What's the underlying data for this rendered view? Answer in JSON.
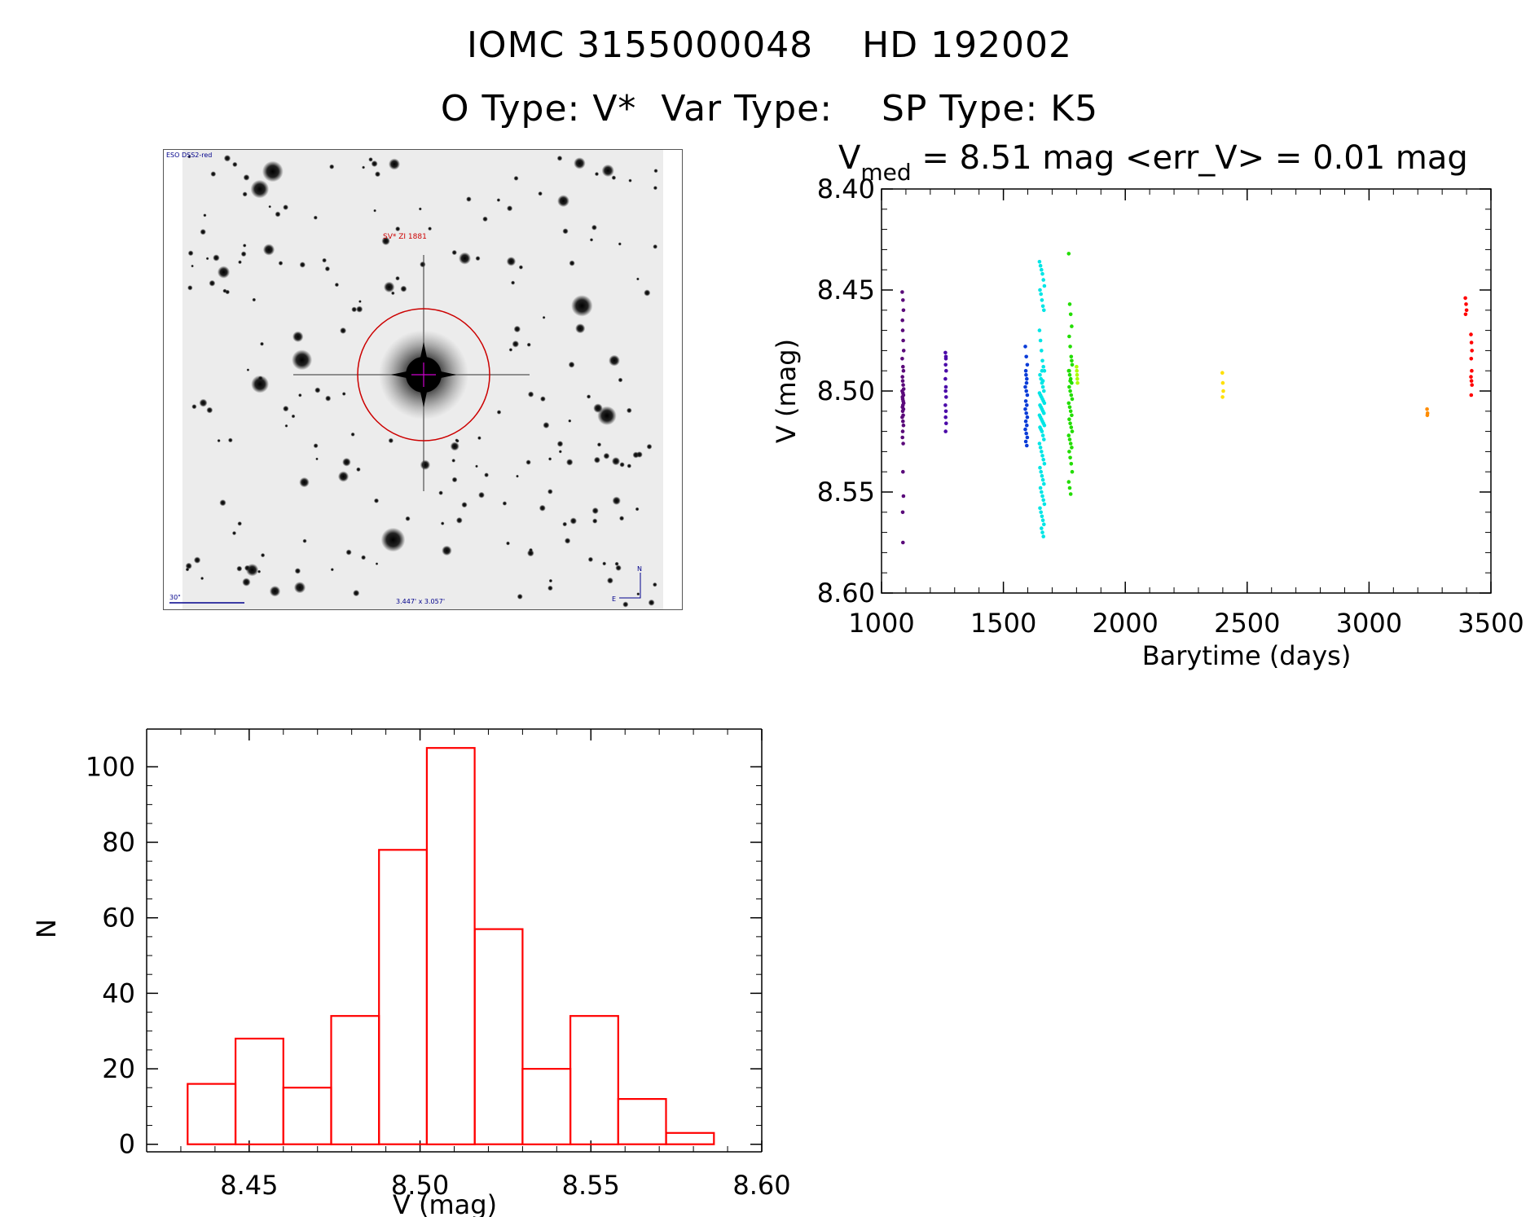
{
  "title": {
    "line1": "IOMC 3155000048    HD 192002",
    "line2": "O Type: V*  Var Type:    SP Type: K5"
  },
  "image_panel": {
    "source_label": "ESO DSS2-red",
    "object_label": "SV* ZI 1881",
    "scale_label": "30\"",
    "fov_label": "3.447' x 3.057'",
    "north_label": "N",
    "east_label": "E"
  },
  "colors": {
    "histogram": "#ff0000",
    "circle": "#cc0000",
    "crosshair": "#cc00cc",
    "annotation_blue": "#00008b",
    "annotation_red": "#cc0000"
  },
  "chart_data": [
    {
      "type": "scatter",
      "title_prefix": "V",
      "title_subscript": "med",
      "title_rest": " = 8.51 mag <err_V> = 0.01 mag",
      "xlabel": "Barytime (days)",
      "ylabel": "V (mag)",
      "xlim": [
        1000,
        3500
      ],
      "ylim": [
        8.6,
        8.4
      ],
      "y_inverted": true,
      "xticks": [
        1000,
        1500,
        2000,
        2500,
        3000,
        3500
      ],
      "yticks": [
        "8.40",
        "8.45",
        "8.50",
        "8.55",
        "8.60"
      ],
      "series": [
        {
          "name": "s1",
          "color": "#5a0a7a",
          "x": [
            1085,
            1088,
            1090,
            1086,
            1087,
            1089,
            1091,
            1085,
            1088,
            1090,
            1086,
            1087,
            1089,
            1091,
            1085,
            1088,
            1090,
            1086,
            1087,
            1089,
            1091,
            1088,
            1086,
            1090,
            1087,
            1089,
            1085,
            1088,
            1090,
            1087,
            1086,
            1089,
            1088,
            1090,
            1087,
            1088
          ],
          "y": [
            8.451,
            8.455,
            8.46,
            8.465,
            8.47,
            8.475,
            8.48,
            8.484,
            8.488,
            8.49,
            8.493,
            8.495,
            8.497,
            8.499,
            8.5,
            8.501,
            8.502,
            8.503,
            8.504,
            8.505,
            8.506,
            8.507,
            8.508,
            8.509,
            8.51,
            8.512,
            8.513,
            8.515,
            8.517,
            8.52,
            8.523,
            8.526,
            8.54,
            8.552,
            8.56,
            8.575
          ]
        },
        {
          "name": "s2",
          "color": "#4b0aa8",
          "x": [
            1262,
            1264,
            1263,
            1265,
            1262,
            1264,
            1263,
            1265,
            1262,
            1264,
            1263,
            1265,
            1263,
            1264
          ],
          "y": [
            8.481,
            8.484,
            8.487,
            8.49,
            8.494,
            8.498,
            8.5,
            8.503,
            8.507,
            8.51,
            8.513,
            8.516,
            8.52,
            8.483
          ]
        },
        {
          "name": "s3",
          "color": "#0a3cd8",
          "x": [
            1590,
            1594,
            1598,
            1592,
            1596,
            1590,
            1594,
            1598,
            1592,
            1596,
            1590,
            1594,
            1598,
            1592,
            1596,
            1590,
            1594,
            1598,
            1592,
            1596,
            1593,
            1595
          ],
          "y": [
            8.478,
            8.483,
            8.487,
            8.49,
            8.494,
            8.498,
            8.5,
            8.502,
            8.505,
            8.507,
            8.509,
            8.511,
            8.513,
            8.515,
            8.517,
            8.519,
            8.521,
            8.523,
            8.525,
            8.527,
            8.492,
            8.496
          ]
        },
        {
          "name": "s4",
          "color": "#00e5e5",
          "x": [
            1648,
            1652,
            1656,
            1660,
            1664,
            1668,
            1650,
            1654,
            1658,
            1662,
            1666,
            1648,
            1652,
            1656,
            1660,
            1664,
            1668,
            1650,
            1654,
            1658,
            1662,
            1666,
            1648,
            1652,
            1656,
            1660,
            1664,
            1668,
            1650,
            1654,
            1658,
            1662,
            1666,
            1648,
            1652,
            1656,
            1660,
            1664,
            1668,
            1650,
            1654,
            1658,
            1662,
            1666,
            1648,
            1652,
            1656,
            1660,
            1664,
            1668,
            1650,
            1654,
            1658,
            1662,
            1666,
            1652,
            1656,
            1660,
            1664,
            1668,
            1650,
            1654,
            1658,
            1662,
            1666,
            1656,
            1660,
            1664,
            1658,
            1662
          ],
          "y": [
            8.436,
            8.438,
            8.44,
            8.442,
            8.445,
            8.448,
            8.45,
            8.452,
            8.455,
            8.458,
            8.46,
            8.47,
            8.475,
            8.48,
            8.485,
            8.488,
            8.49,
            8.492,
            8.494,
            8.496,
            8.498,
            8.5,
            8.501,
            8.502,
            8.503,
            8.504,
            8.505,
            8.506,
            8.507,
            8.508,
            8.509,
            8.51,
            8.511,
            8.512,
            8.513,
            8.514,
            8.515,
            8.516,
            8.517,
            8.518,
            8.519,
            8.52,
            8.522,
            8.524,
            8.526,
            8.528,
            8.53,
            8.532,
            8.534,
            8.536,
            8.538,
            8.54,
            8.542,
            8.544,
            8.546,
            8.548,
            8.55,
            8.552,
            8.554,
            8.556,
            8.558,
            8.56,
            8.562,
            8.564,
            8.566,
            8.568,
            8.57,
            8.572,
            8.49,
            8.495
          ]
        },
        {
          "name": "s5",
          "color": "#22dd00",
          "x": [
            1768,
            1772,
            1776,
            1780,
            1770,
            1774,
            1778,
            1782,
            1768,
            1772,
            1776,
            1780,
            1770,
            1774,
            1778,
            1782,
            1768,
            1772,
            1776,
            1780,
            1770,
            1774,
            1778,
            1782,
            1768,
            1772,
            1776,
            1780,
            1770,
            1774,
            1778,
            1782,
            1768,
            1772,
            1776,
            1780,
            1770,
            1774
          ],
          "y": [
            8.432,
            8.457,
            8.462,
            8.468,
            8.473,
            8.478,
            8.483,
            8.487,
            8.49,
            8.492,
            8.494,
            8.496,
            8.498,
            8.5,
            8.502,
            8.504,
            8.506,
            8.508,
            8.51,
            8.512,
            8.514,
            8.516,
            8.518,
            8.52,
            8.522,
            8.524,
            8.526,
            8.528,
            8.53,
            8.533,
            8.536,
            8.54,
            8.545,
            8.548,
            8.551,
            8.485,
            8.49,
            8.495
          ]
        },
        {
          "name": "s6",
          "color": "#aaff00",
          "x": [
            1800,
            1802,
            1804,
            1801,
            1803
          ],
          "y": [
            8.488,
            8.492,
            8.496,
            8.49,
            8.494
          ]
        },
        {
          "name": "s7",
          "color": "#ffe000",
          "x": [
            2398,
            2400,
            2402,
            2399
          ],
          "y": [
            8.491,
            8.496,
            8.5,
            8.503
          ]
        },
        {
          "name": "s8",
          "color": "#ff8c00",
          "x": [
            3238,
            3240,
            3239
          ],
          "y": [
            8.509,
            8.511,
            8.512
          ]
        },
        {
          "name": "s9",
          "color": "#ff0000",
          "x": [
            3395,
            3398,
            3400,
            3396,
            3418,
            3420,
            3422,
            3419,
            3421,
            3418,
            3420,
            3422,
            3419
          ],
          "y": [
            8.454,
            8.457,
            8.46,
            8.462,
            8.472,
            8.476,
            8.48,
            8.484,
            8.49,
            8.493,
            8.495,
            8.497,
            8.502
          ]
        }
      ]
    },
    {
      "type": "bar",
      "subtype": "histogram",
      "xlabel": "V (mag)",
      "ylabel": "N",
      "xlim": [
        8.42,
        8.6
      ],
      "ylim": [
        0,
        110
      ],
      "xticks": [
        "8.45",
        "8.50",
        "8.55",
        "8.60"
      ],
      "yticks": [
        "0",
        "20",
        "40",
        "60",
        "80",
        "100"
      ],
      "bin_edges": [
        8.432,
        8.446,
        8.46,
        8.474,
        8.488,
        8.502,
        8.516,
        8.53,
        8.544,
        8.558,
        8.572,
        8.586
      ],
      "values": [
        16,
        28,
        15,
        34,
        78,
        105,
        57,
        20,
        34,
        12,
        3
      ]
    }
  ]
}
